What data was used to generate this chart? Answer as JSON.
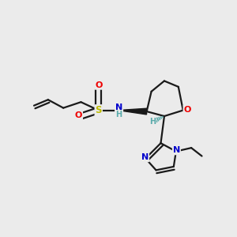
{
  "bg_color": "#ebebeb",
  "atom_colors": {
    "C": "#000000",
    "N": "#0000cc",
    "O": "#ee0000",
    "S": "#bbbb00",
    "H": "#5aabab"
  },
  "bond_color": "#1a1a1a",
  "bond_width": 1.6
}
